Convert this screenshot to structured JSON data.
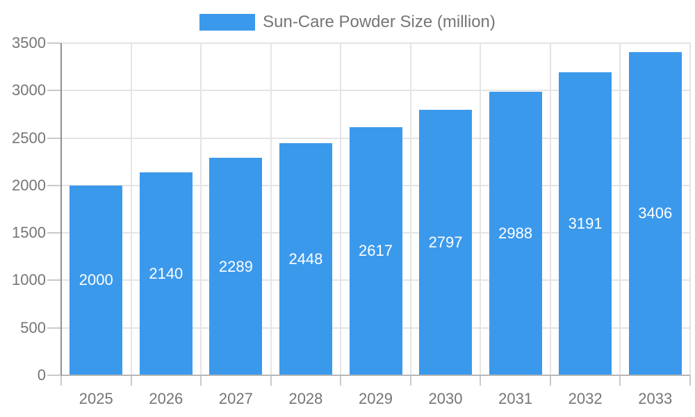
{
  "chart_data": {
    "type": "bar",
    "title": "Sun-Care Powder Size (million)",
    "categories": [
      "2025",
      "2026",
      "2027",
      "2028",
      "2029",
      "2030",
      "2031",
      "2032",
      "2033"
    ],
    "values": [
      2000,
      2140,
      2289,
      2448,
      2617,
      2797,
      2988,
      3191,
      3406
    ],
    "series": [
      {
        "name": "Sun-Care Powder Size (million)",
        "values": [
          2000,
          2140,
          2289,
          2448,
          2617,
          2797,
          2988,
          3191,
          3406
        ]
      }
    ],
    "xlabel": "",
    "ylabel": "",
    "ylim": [
      0,
      3500
    ],
    "y_ticks": [
      0,
      500,
      1000,
      1500,
      2000,
      2500,
      3000,
      3500
    ],
    "grid": true,
    "legend_position": "top",
    "colors": {
      "bar": "#3B99EC",
      "bar_value_text": "#FFFFFF",
      "axis_text": "#757575",
      "legend_text": "#757575",
      "gridline": "#E4E4E4",
      "tick": "#C9C9C9",
      "x_axis_line": "#B6B6B6",
      "y_axis_line": "#8F8F8F",
      "background": "#FFFFFF"
    }
  }
}
